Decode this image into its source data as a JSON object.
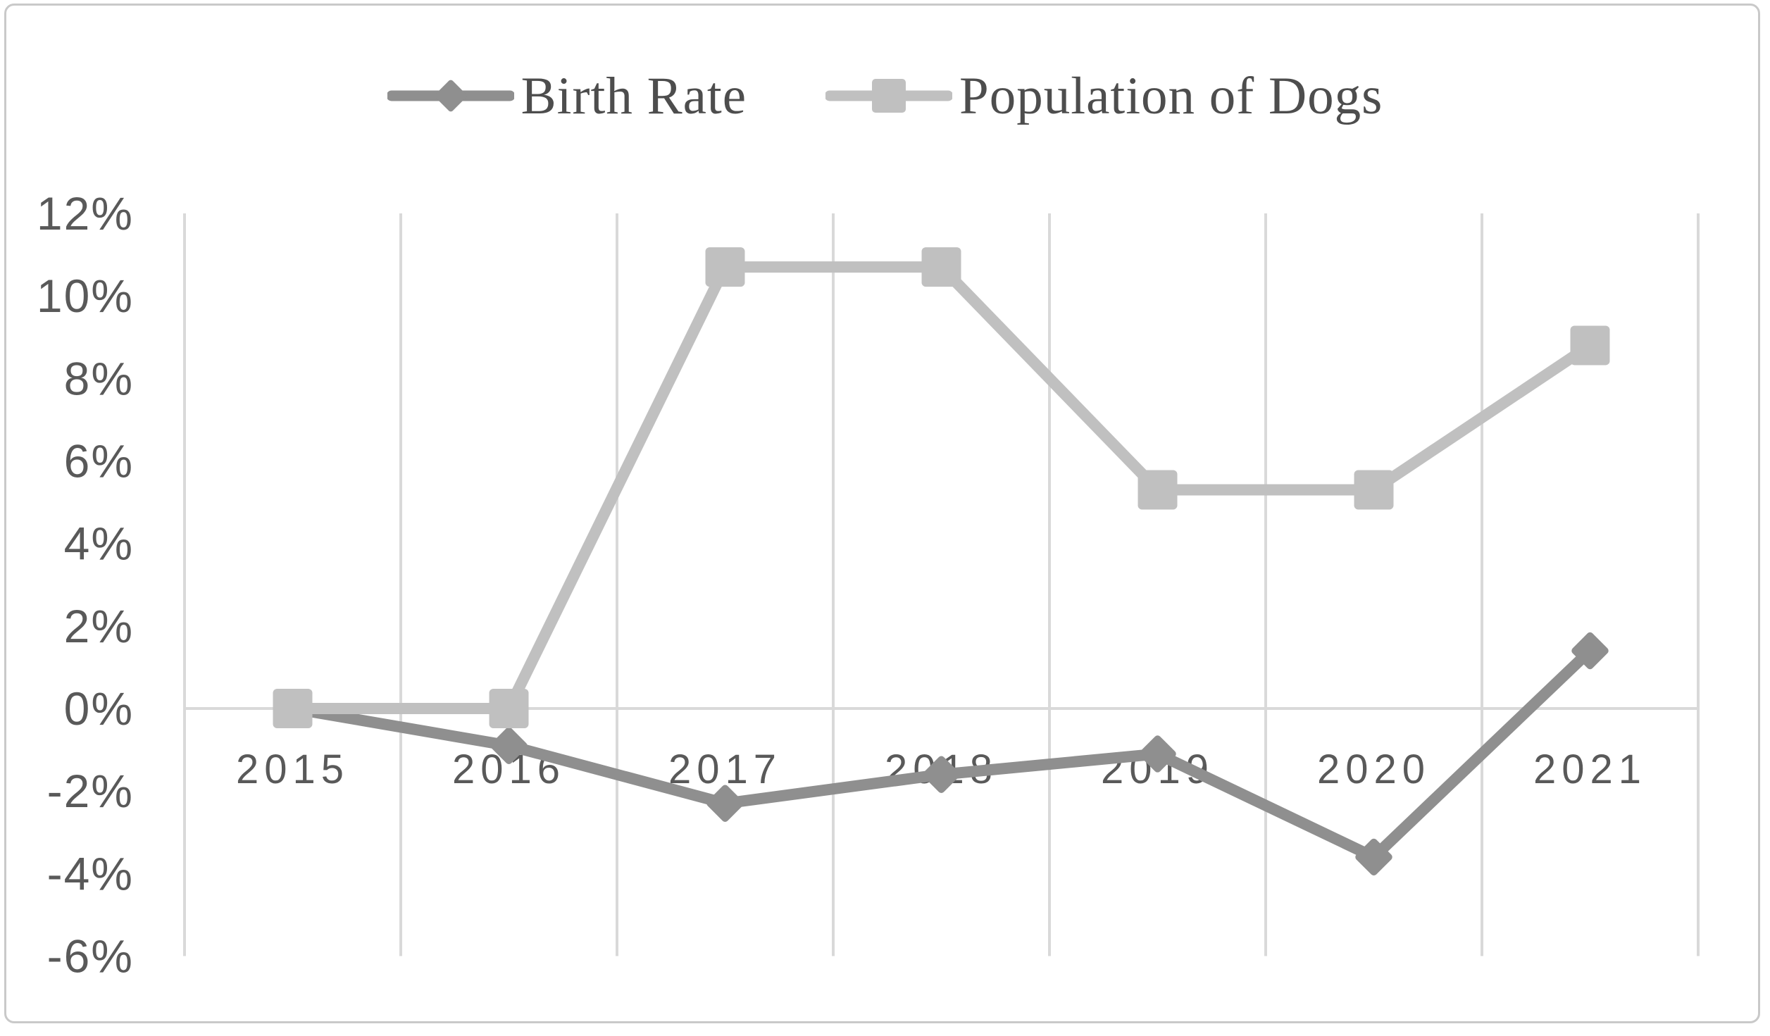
{
  "figure": {
    "background": "#ffffff",
    "border_color": "#c9c9c9"
  },
  "legend": {
    "position": "top-center",
    "text_color": "#4d4d4d",
    "items": [
      {
        "label": "Birth Rate",
        "marker": "diamond",
        "color": "#8f8f8f"
      },
      {
        "label": "Population of Dogs",
        "marker": "square",
        "color": "#c0c0c0"
      }
    ]
  },
  "chart_data": {
    "type": "line",
    "title": "",
    "xlabel": "",
    "ylabel": "",
    "unit": "percent",
    "x": [
      2015,
      2016,
      2017,
      2018,
      2019,
      2020,
      2021
    ],
    "x_tick_labels": [
      "2015",
      "2016",
      "2017",
      "2018",
      "2019",
      "2020",
      "2021"
    ],
    "series": [
      {
        "name": "Birth Rate",
        "values": [
          0.0,
          -0.9,
          -2.3,
          -1.6,
          -1.1,
          -3.6,
          1.4
        ],
        "color": "#8f8f8f",
        "marker": "diamond"
      },
      {
        "name": "Population of Dogs",
        "values": [
          0.0,
          0.0,
          10.7,
          10.7,
          5.3,
          5.3,
          8.8
        ],
        "color": "#c0c0c0",
        "marker": "square"
      }
    ],
    "y_axis": {
      "min_pct": -6,
      "max_pct": 12,
      "step_pct": 2,
      "tick_labels": [
        "12%",
        "10%",
        "8%",
        "6%",
        "4%",
        "2%",
        "0%",
        "-2%",
        "-4%",
        "-6%"
      ],
      "label_color": "#595959"
    },
    "x_axis": {
      "label_color": "#595959"
    },
    "gridlines": {
      "vertical": true,
      "horizontal": false,
      "color": "#d9d9d9"
    },
    "zero_line_color": "#d9d9d9",
    "legend_position": "top"
  }
}
